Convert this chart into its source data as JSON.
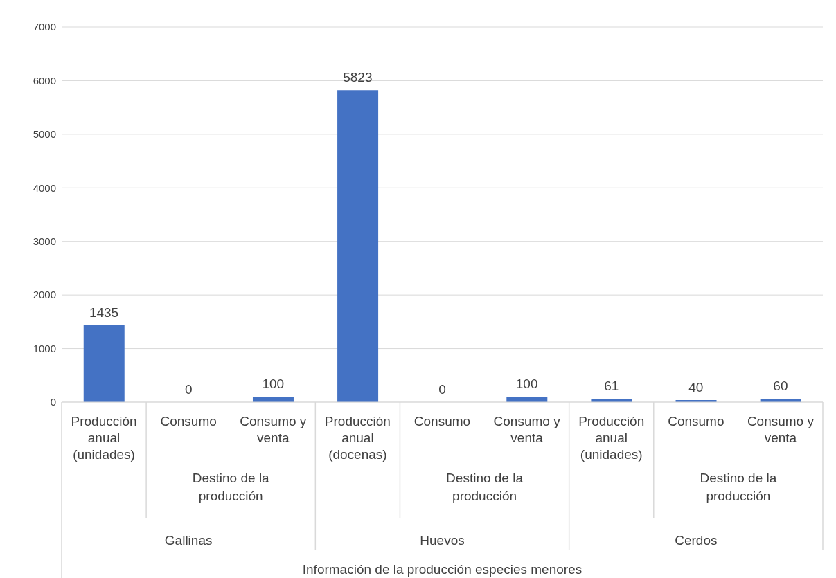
{
  "chart_data": {
    "type": "bar",
    "categories": [
      "Producción anual (unidades)",
      "Consumo",
      "Consumo y venta",
      "Producción anual (docenas)",
      "Consumo",
      "Consumo y venta",
      "Producción anual (unidades)",
      "Consumo",
      "Consumo y venta"
    ],
    "values": [
      1435,
      0,
      100,
      5823,
      0,
      100,
      61,
      40,
      60
    ],
    "color": "#4472c4",
    "data_labels": true,
    "annotations": [
      "Destino de la producción",
      "Destino de la producción",
      "Destino de la producción",
      "Gallinas",
      "Huevos",
      "Cerdos",
      "Información de la producción especies menores"
    ],
    "ylim": [
      0,
      7000
    ],
    "yticks": [
      0,
      1000,
      2000,
      3000,
      4000,
      5000,
      6000,
      7000
    ],
    "grid": "y",
    "legend": false
  }
}
